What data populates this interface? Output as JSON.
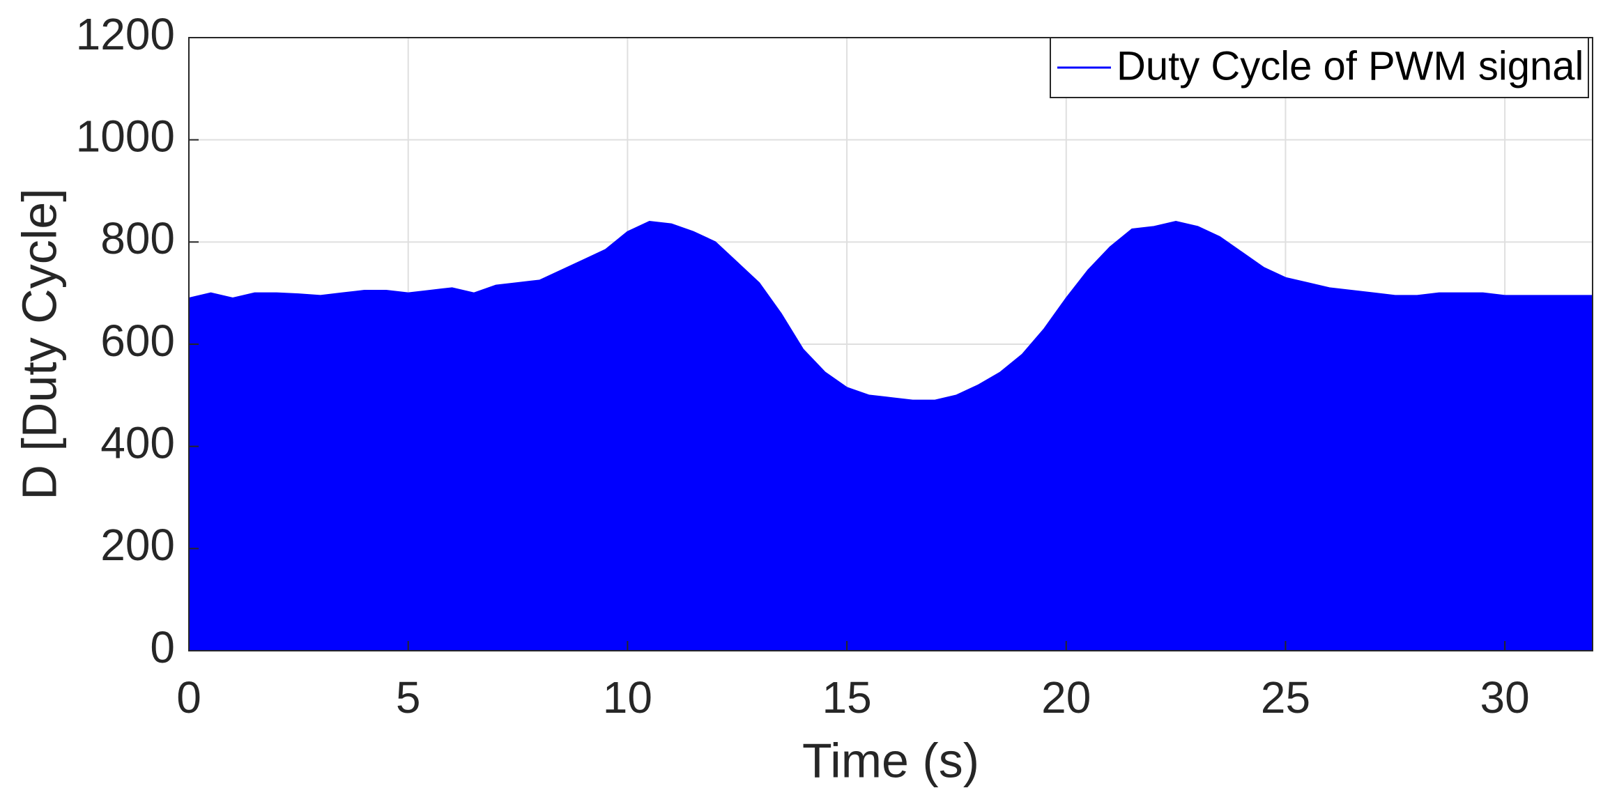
{
  "chart_data": {
    "type": "area",
    "x_label": "Time (s)",
    "y_label": "D [Duty Cycle]",
    "series": [
      {
        "name": "Duty Cycle of PWM signal",
        "color": "#0000ff",
        "x": [
          0,
          0.5,
          1,
          1.5,
          2,
          2.5,
          3,
          3.5,
          4,
          4.5,
          5,
          5.5,
          6,
          6.5,
          7,
          7.5,
          8,
          8.5,
          9,
          9.5,
          10,
          10.5,
          11,
          11.5,
          12,
          12.5,
          13,
          13.5,
          14,
          14.5,
          15,
          15.5,
          16,
          16.5,
          17,
          17.5,
          18,
          18.5,
          19,
          19.5,
          20,
          20.5,
          21,
          21.5,
          22,
          22.5,
          23,
          23.5,
          24,
          24.5,
          25,
          25.5,
          26,
          26.5,
          27,
          27.5,
          28,
          28.5,
          29,
          29.5,
          30,
          30.5,
          31,
          31.5,
          32
        ],
        "values": [
          690,
          700,
          690,
          700,
          700,
          698,
          695,
          700,
          705,
          705,
          700,
          705,
          710,
          700,
          715,
          720,
          725,
          745,
          765,
          785,
          820,
          840,
          835,
          820,
          800,
          760,
          720,
          660,
          590,
          545,
          515,
          500,
          495,
          490,
          490,
          500,
          520,
          545,
          580,
          630,
          690,
          745,
          790,
          825,
          830,
          840,
          830,
          810,
          780,
          750,
          730,
          720,
          710,
          705,
          700,
          695,
          695,
          700,
          700,
          700,
          695,
          695,
          695,
          695,
          695
        ]
      }
    ],
    "xlim": [
      0,
      32
    ],
    "xticks": [
      0,
      5,
      10,
      15,
      20,
      25,
      30
    ],
    "ylim": [
      0,
      1200
    ],
    "yticks": [
      0,
      200,
      400,
      600,
      800,
      1000,
      1200
    ],
    "grid": true,
    "legend": "top-right"
  }
}
